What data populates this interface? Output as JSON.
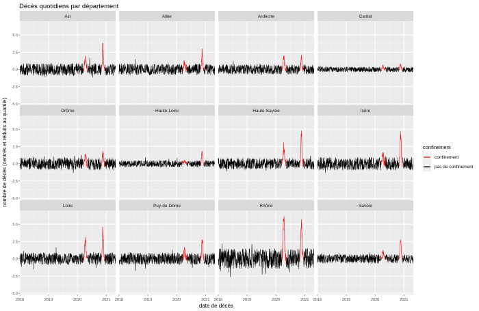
{
  "chart_data": {
    "type": "line",
    "title": "Décès quotidiens par département",
    "xlabel": "date de décès",
    "ylabel": "nombre de décès (centrés et réduits au quartile)",
    "x_ticks": [
      "2018",
      "2019",
      "2020",
      "2021"
    ],
    "x_range": [
      "2018-01-01",
      "2021-04-30"
    ],
    "y_ticks": [
      "-5.0",
      "-2.5",
      "0.0",
      "2.5",
      "5.0"
    ],
    "y_range": [
      -5.2,
      7.0
    ],
    "grid": true,
    "facet_layout": {
      "rows": 3,
      "cols": 4,
      "scales": "fixed"
    },
    "legend": {
      "title": "confinement",
      "position": "right",
      "entries": [
        {
          "label": "confinement",
          "color": "#e8110f"
        },
        {
          "label": "pas de confinement",
          "color": "#000000"
        }
      ]
    },
    "confinement_periods": [
      [
        "2020-03-17",
        "2020-05-11"
      ],
      [
        "2020-10-30",
        "2020-12-15"
      ]
    ],
    "panels": [
      {
        "name": "Ain",
        "noise_amp": 1.6,
        "peak1": 1.9,
        "peak2": 3.7,
        "min_y": -1.2
      },
      {
        "name": "Allier",
        "noise_amp": 1.5,
        "peak1": 1.1,
        "peak2": 2.4,
        "min_y": -1.2
      },
      {
        "name": "Ardèche",
        "noise_amp": 1.3,
        "peak1": 1.8,
        "peak2": 2.0,
        "min_y": -1.2
      },
      {
        "name": "Cantal",
        "noise_amp": 0.7,
        "peak1": 0.5,
        "peak2": 0.8,
        "min_y": -0.6
      },
      {
        "name": "Drôme",
        "noise_amp": 1.6,
        "peak1": 1.2,
        "peak2": 1.8,
        "min_y": -1.4
      },
      {
        "name": "Haute-Loire",
        "noise_amp": 0.9,
        "peak1": 0.4,
        "peak2": 1.9,
        "min_y": -0.6
      },
      {
        "name": "Haute-Savoie",
        "noise_amp": 1.5,
        "peak1": 2.6,
        "peak2": 4.4,
        "min_y": -1.5
      },
      {
        "name": "Isère",
        "noise_amp": 1.7,
        "peak1": 1.6,
        "peak2": 5.2,
        "min_y": -1.7
      },
      {
        "name": "Loire",
        "noise_amp": 1.6,
        "peak1": 3.3,
        "peak2": 4.4,
        "min_y": -2.4
      },
      {
        "name": "Puy-de-Dôme",
        "noise_amp": 1.6,
        "peak1": 1.2,
        "peak2": 2.9,
        "min_y": -1.8
      },
      {
        "name": "Rhône",
        "noise_amp": 2.7,
        "peak1": 6.5,
        "peak2": 5.3,
        "min_y": -4.9
      },
      {
        "name": "Savoie",
        "noise_amp": 1.2,
        "peak1": 1.0,
        "peak2": 2.9,
        "min_y": -1.2
      }
    ]
  }
}
